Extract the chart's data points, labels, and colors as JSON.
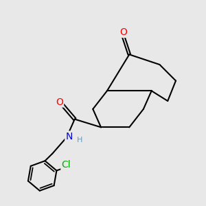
{
  "bg_color": "#e8e8e8",
  "bond_color": "#000000",
  "bond_width": 1.5,
  "atom_colors": {
    "O": "#ff0000",
    "N": "#0000cd",
    "Cl": "#00aa00",
    "H": "#6699bb"
  },
  "font_size_atom": 10,
  "font_size_h": 8,
  "font_size_cl": 10
}
